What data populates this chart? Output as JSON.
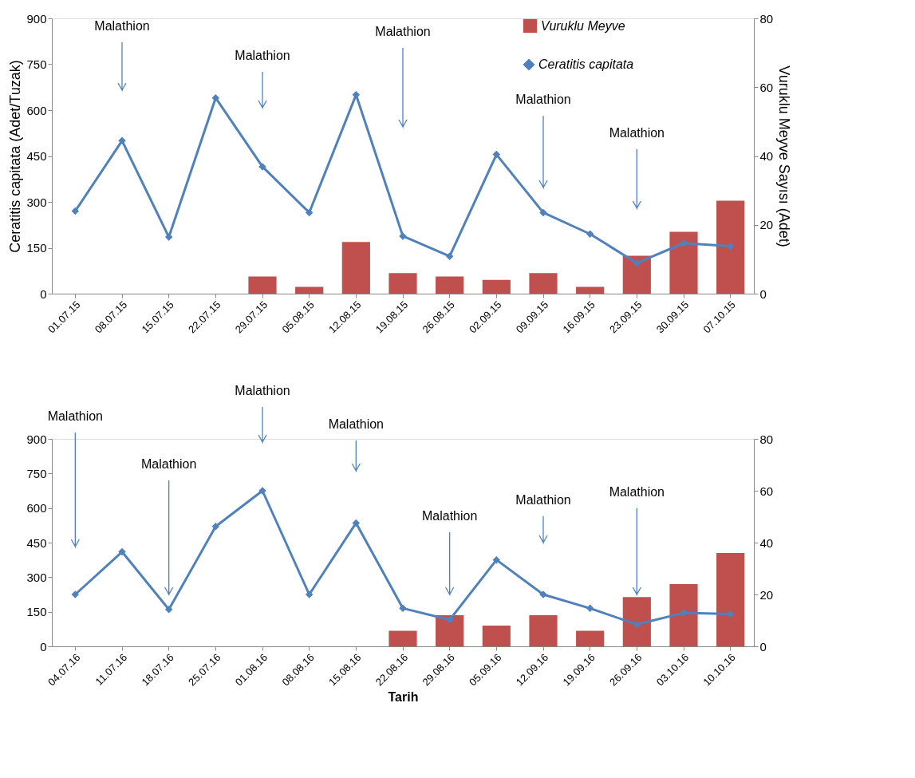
{
  "chart_data": [
    {
      "type": "bar",
      "ylabel": "Ceratitis capitata (Adet/Tuzak)",
      "y2label": "Vuruklu Meyve Sayısı (Adet)",
      "legend": "top right",
      "marker": "diamond",
      "categories": [
        "01.07.15",
        "08.07.15",
        "15.07.15",
        "22.07.15",
        "29.07.15",
        "05.08.15",
        "12.08.15",
        "19.08.15",
        "26.08.15",
        "02.09.15",
        "09.09.15",
        "16.09.15",
        "23.09.15",
        "30.09.15",
        "07.10.15"
      ],
      "series": [
        {
          "name": "Vuruklu Meyve",
          "axis": "y2",
          "color": "#c0504d",
          "values": [
            null,
            null,
            null,
            null,
            5,
            2,
            15,
            6,
            5,
            4,
            6,
            2,
            11,
            18,
            27
          ]
        },
        {
          "name": "Ceratitis capitata",
          "type": "line",
          "axis": "y",
          "color": "#4f81bd",
          "values": [
            270,
            500,
            185,
            640,
            415,
            265,
            650,
            188,
            122,
            455,
            265,
            195,
            100,
            165,
            155
          ]
        }
      ],
      "ylim": [
        0,
        900
      ],
      "yticks": [
        0,
        150,
        300,
        450,
        600,
        750,
        900
      ],
      "y2lim": [
        0,
        80
      ],
      "y2ticks": [
        0,
        20,
        40,
        60,
        80
      ],
      "annotations": [
        "Malathion",
        "Malathion",
        "Malathion",
        "Malathion",
        "Malathion"
      ]
    },
    {
      "type": "bar",
      "xlabel": "Tarih",
      "marker": "diamond",
      "categories": [
        "04.07.16",
        "11.07.16",
        "18.07.16",
        "25.07.16",
        "01.08.16",
        "08.08.16",
        "15.08.16",
        "22.08.16",
        "29.08.16",
        "05.09.16",
        "12.09.16",
        "19.09.16",
        "26.09.16",
        "03.10.16",
        "10.10.16"
      ],
      "series": [
        {
          "axis": "y2",
          "color": "#c0504d",
          "values": [
            null,
            null,
            null,
            null,
            null,
            null,
            null,
            6,
            12,
            8,
            12,
            6,
            19,
            24,
            36
          ]
        },
        {
          "type": "line",
          "axis": "y",
          "color": "#4f81bd",
          "values": [
            225,
            410,
            160,
            520,
            675,
            225,
            535,
            165,
            115,
            375,
            225,
            165,
            95,
            145,
            140
          ]
        }
      ],
      "ylim": [
        0,
        900
      ],
      "yticks": [
        0,
        150,
        300,
        450,
        600,
        750,
        900
      ],
      "y2lim": [
        0,
        80
      ],
      "y2ticks": [
        0,
        20,
        40,
        60,
        80
      ],
      "annotations": [
        "Malathion",
        "Malathion",
        "Malathion",
        "Malathion",
        "Malathion",
        "Malathion",
        "Malathion"
      ]
    }
  ]
}
